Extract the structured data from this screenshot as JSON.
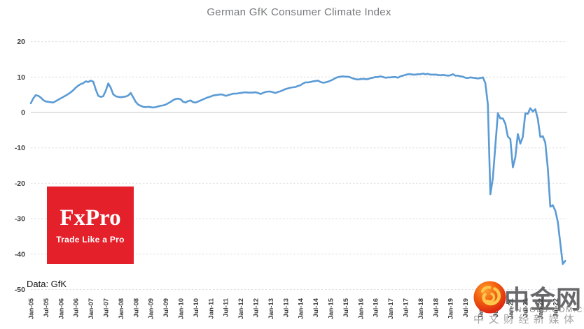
{
  "chart_data": {
    "type": "line",
    "title": "German GfK Consumer Climate Index",
    "source_note": "Data: GfK",
    "legend": "none",
    "grid": "horizontal, dashed; solid line at zero",
    "x_axis": {
      "unit": "month",
      "first_point": "Jan-05",
      "last_point": "Nov-22",
      "tick_labels": [
        "Jan-05",
        "Jul-05",
        "Jan-06",
        "Jul-06",
        "Jan-07",
        "Jul-07",
        "Jan-08",
        "Jul-08",
        "Jan-09",
        "Jul-09",
        "Jan-10",
        "Jul-10",
        "Jan-11",
        "Jul-11",
        "Jan-12",
        "Jul-12",
        "Jan-13",
        "Jul-13",
        "Jan-14",
        "Jul-14",
        "Jan-15",
        "Jul-15",
        "Jan-16",
        "Jul-16",
        "Jan-17",
        "Jul-17",
        "Jan-18",
        "Jul-18",
        "Jan-19",
        "Jul-19",
        "Jan-20",
        "Jul-20",
        "Jan-21",
        "Jul-21",
        "Jan-22",
        "Jul-22"
      ]
    },
    "y_axis": {
      "ticks": [
        20,
        10,
        0,
        -10,
        -20,
        -30,
        -40,
        -50
      ],
      "range": [
        -50,
        20
      ]
    },
    "series": [
      {
        "name": "GfK Consumer Climate Index (points)",
        "color": "#5B9BD5",
        "interval": "monthly from Jan-05",
        "monthly_values": [
          2.6,
          4.0,
          4.9,
          4.7,
          4.2,
          3.5,
          3.1,
          3.0,
          2.9,
          2.8,
          3.2,
          3.6,
          4.0,
          4.4,
          4.8,
          5.2,
          5.7,
          6.3,
          7.0,
          7.6,
          8.0,
          8.3,
          8.8,
          8.6,
          9.0,
          8.7,
          6.5,
          4.7,
          4.4,
          4.6,
          6.1,
          8.2,
          7.0,
          5.1,
          4.6,
          4.4,
          4.3,
          4.4,
          4.5,
          4.8,
          5.5,
          4.3,
          3.0,
          2.2,
          1.9,
          1.6,
          1.5,
          1.6,
          1.5,
          1.4,
          1.5,
          1.7,
          1.9,
          2.0,
          2.2,
          2.6,
          3.0,
          3.5,
          3.8,
          3.9,
          3.7,
          3.0,
          2.8,
          3.2,
          3.4,
          2.9,
          2.8,
          3.1,
          3.4,
          3.7,
          4.0,
          4.3,
          4.5,
          4.8,
          4.9,
          5.0,
          5.1,
          5.0,
          4.7,
          4.9,
          5.1,
          5.3,
          5.3,
          5.4,
          5.5,
          5.6,
          5.7,
          5.6,
          5.6,
          5.6,
          5.7,
          5.5,
          5.2,
          5.5,
          5.8,
          5.9,
          5.9,
          5.7,
          5.5,
          5.8,
          6.0,
          6.3,
          6.6,
          6.8,
          7.0,
          7.1,
          7.2,
          7.5,
          7.7,
          8.2,
          8.5,
          8.5,
          8.6,
          8.8,
          8.9,
          9.0,
          8.6,
          8.4,
          8.5,
          8.7,
          9.0,
          9.3,
          9.7,
          10.0,
          10.1,
          10.2,
          10.1,
          10.1,
          9.9,
          9.6,
          9.4,
          9.3,
          9.4,
          9.5,
          9.4,
          9.4,
          9.7,
          9.8,
          10.0,
          10.0,
          10.2,
          10.0,
          9.8,
          9.9,
          9.9,
          10.0,
          10.0,
          9.8,
          10.2,
          10.4,
          10.6,
          10.8,
          10.8,
          10.7,
          10.7,
          10.8,
          10.8,
          11.0,
          10.8,
          10.9,
          10.7,
          10.7,
          10.7,
          10.6,
          10.5,
          10.6,
          10.5,
          10.4,
          10.5,
          10.8,
          10.4,
          10.4,
          10.2,
          10.1,
          9.8,
          9.7,
          9.9,
          9.8,
          9.7,
          9.6,
          9.7,
          9.9,
          8.3,
          2.3,
          -23.1,
          -18.6,
          -9.4,
          -0.2,
          -1.7,
          -1.7,
          -3.2,
          -6.8,
          -7.5,
          -15.5,
          -12.7,
          -6.1,
          -8.8,
          -6.9,
          -0.3,
          -0.4,
          1.2,
          0.3,
          0.9,
          -1.8,
          -6.9,
          -6.7,
          -8.5,
          -15.7,
          -26.6,
          -26.2,
          -27.7,
          -30.9,
          -36.8,
          -42.8,
          -41.9
        ]
      }
    ]
  },
  "branding": {
    "logo_text": "FxPro",
    "tagline": "Trade Like a Pro",
    "color": "#E4202A"
  },
  "watermark": {
    "site_name": "中金网",
    "domain": "CNGOLD.COM.CN",
    "tagline": "中文财经新媒体",
    "logo_colors": {
      "ball_red": "#D91C12",
      "ball_orange": "#F2600F",
      "swirl_gold": "#FFC84D"
    }
  }
}
